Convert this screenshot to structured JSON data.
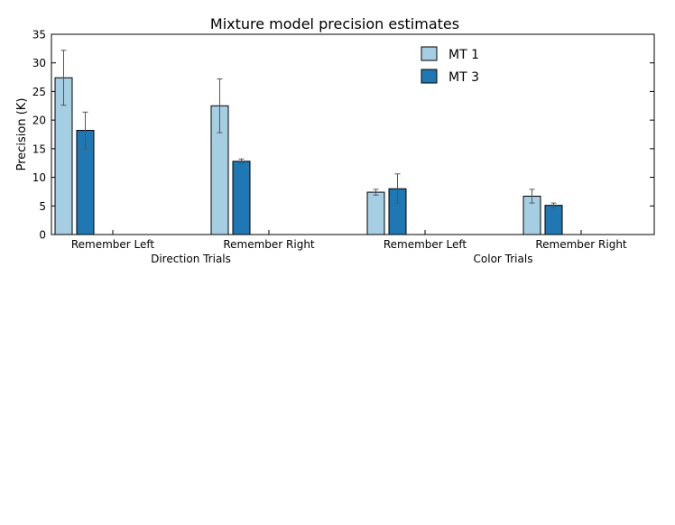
{
  "chart_data": {
    "type": "bar",
    "title": "Mixture model precision estimates",
    "ylabel": "Precision (K)",
    "ylim": [
      0,
      35
    ],
    "yticks": [
      0,
      5,
      10,
      15,
      20,
      25,
      30,
      35
    ],
    "grid": false,
    "legend_position": "top-center",
    "groups": [
      {
        "label": "Direction Trials",
        "categories": [
          {
            "label": "Remember Left",
            "values": [
              27.4,
              18.2
            ],
            "errors": [
              4.8,
              3.2
            ]
          },
          {
            "label": "Remember Right",
            "values": [
              22.5,
              12.8
            ],
            "errors": [
              4.7,
              0.4
            ]
          }
        ]
      },
      {
        "label": "Color Trials",
        "categories": [
          {
            "label": "Remember Left",
            "values": [
              7.4,
              8.0
            ],
            "errors": [
              0.5,
              2.6
            ]
          },
          {
            "label": "Remember Right",
            "values": [
              6.7,
              5.1
            ],
            "errors": [
              1.2,
              0.4
            ]
          }
        ]
      }
    ],
    "series": [
      {
        "name": "MT 1",
        "color": "#a6cee3"
      },
      {
        "name": "MT 3",
        "color": "#1f78b4"
      }
    ]
  }
}
